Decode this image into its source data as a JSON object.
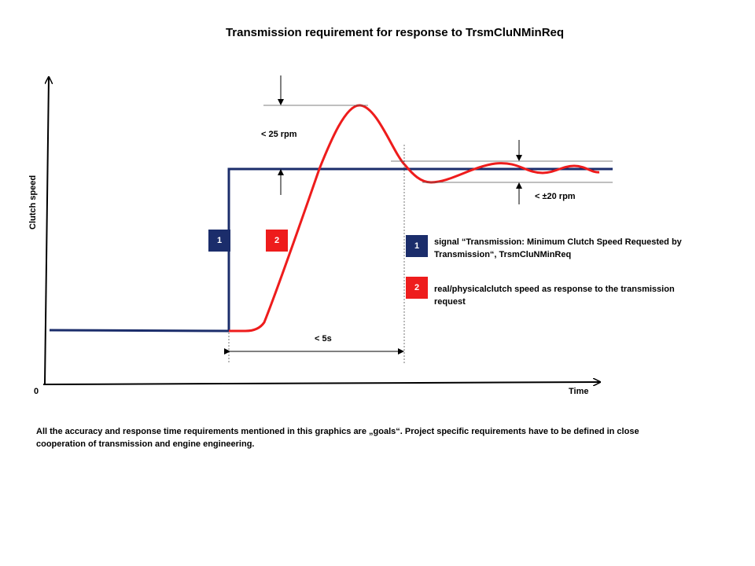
{
  "title": "Transmission requirement for response to TrsmCluNMinReq",
  "axes": {
    "ylabel": "Clutch speed",
    "xlabel": "Time",
    "origin": "0"
  },
  "annotations": {
    "overshoot": "< 25 rpm",
    "tolerance": "< ±20 rpm",
    "response_time": "< 5s"
  },
  "markers": {
    "signal": "1",
    "response": "2"
  },
  "legend": [
    {
      "number": "1",
      "text": "signal  “Transmission:  Minimum  Clutch Speed Requested by Transmission“,  TrsmCluNMinReq"
    },
    {
      "number": "2",
      "text": "real/physicalclutch  speed as response to the transmission request"
    }
  ],
  "footnote": "All the accuracy  and  response time requirements mentioned in this graphics  are „goals“.  Project specific requirements have to be defined in close cooperation of transmission and engine engineering.",
  "colors": {
    "signal": "#1b2d6b",
    "response": "#ee1c1c"
  }
}
